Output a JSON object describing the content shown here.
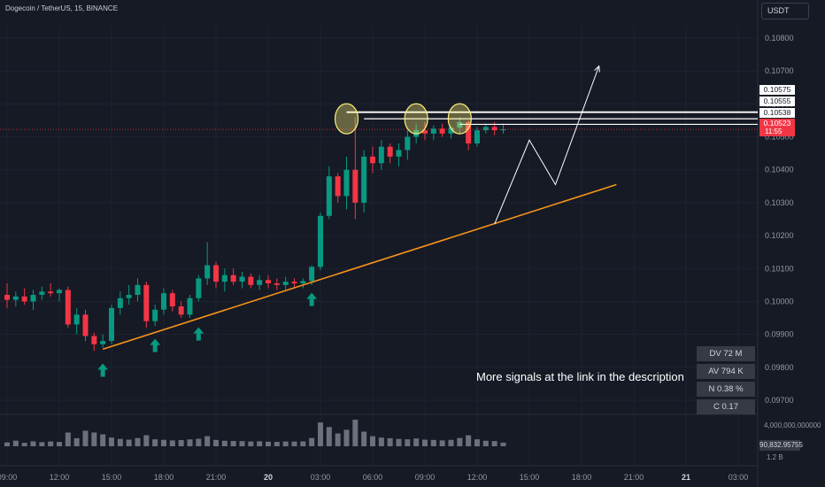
{
  "header": {
    "symbol_title": "Dogecoin / TetherUS, 15, BINANCE",
    "currency": "USDT"
  },
  "price_tags": {
    "level_1": "0.10575",
    "level_2": "0.10555",
    "level_3": "0.10538",
    "current": "0.10523",
    "countdown": "11:55"
  },
  "stats": {
    "dv": "DV 72 M",
    "av": "AV 794 K",
    "n": "N 0.38 %",
    "c": "C  0.17"
  },
  "caption": "More signals at the link in the description",
  "volume_pane": {
    "max_label": "4,000,000,000000",
    "current_label": "90,832.95755",
    "mid_label": "1.2 B"
  },
  "colors": {
    "background": "#161a25",
    "up": "#089981",
    "down": "#f23645",
    "trendline": "#f7931a",
    "highlight": "#fff176",
    "projection": "#ffffff",
    "volume": "#8a8e99"
  },
  "chart_data": {
    "type": "candlestick",
    "series": [
      {
        "name": "DOGEUSDT",
        "candles": [
          {
            "t": "2024-01-19T09:00",
            "o": 0.1002,
            "h": 0.10055,
            "l": 0.0998,
            "c": 0.10005
          },
          {
            "t": "2024-01-19T09:30",
            "o": 0.10005,
            "h": 0.1003,
            "l": 0.09985,
            "c": 0.10015
          },
          {
            "t": "2024-01-19T10:00",
            "o": 0.10015,
            "h": 0.1004,
            "l": 0.0999,
            "c": 0.1
          },
          {
            "t": "2024-01-19T10:30",
            "o": 0.1,
            "h": 0.10035,
            "l": 0.09975,
            "c": 0.1002
          },
          {
            "t": "2024-01-19T11:00",
            "o": 0.1002,
            "h": 0.10045,
            "l": 0.10005,
            "c": 0.1003
          },
          {
            "t": "2024-01-19T11:30",
            "o": 0.1003,
            "h": 0.10055,
            "l": 0.10015,
            "c": 0.10025
          },
          {
            "t": "2024-01-19T12:00",
            "o": 0.10025,
            "h": 0.1004,
            "l": 0.1,
            "c": 0.10035
          },
          {
            "t": "2024-01-19T12:30",
            "o": 0.10035,
            "h": 0.10045,
            "l": 0.0992,
            "c": 0.0993
          },
          {
            "t": "2024-01-19T13:00",
            "o": 0.0993,
            "h": 0.0998,
            "l": 0.099,
            "c": 0.0996
          },
          {
            "t": "2024-01-19T13:30",
            "o": 0.0996,
            "h": 0.09975,
            "l": 0.0988,
            "c": 0.09895
          },
          {
            "t": "2024-01-19T14:00",
            "o": 0.09895,
            "h": 0.09905,
            "l": 0.0985,
            "c": 0.0987
          },
          {
            "t": "2024-01-19T14:30",
            "o": 0.0987,
            "h": 0.099,
            "l": 0.0986,
            "c": 0.0988
          },
          {
            "t": "2024-01-19T15:00",
            "o": 0.0988,
            "h": 0.0999,
            "l": 0.0987,
            "c": 0.0998
          },
          {
            "t": "2024-01-19T15:30",
            "o": 0.0998,
            "h": 0.1003,
            "l": 0.0996,
            "c": 0.1001
          },
          {
            "t": "2024-01-19T16:00",
            "o": 0.1001,
            "h": 0.1005,
            "l": 0.0999,
            "c": 0.1002
          },
          {
            "t": "2024-01-19T16:30",
            "o": 0.1002,
            "h": 0.1007,
            "l": 0.1,
            "c": 0.1005
          },
          {
            "t": "2024-01-19T17:00",
            "o": 0.1005,
            "h": 0.1006,
            "l": 0.0992,
            "c": 0.0994
          },
          {
            "t": "2024-01-19T17:30",
            "o": 0.0994,
            "h": 0.0999,
            "l": 0.09925,
            "c": 0.09975
          },
          {
            "t": "2024-01-19T18:00",
            "o": 0.09975,
            "h": 0.1004,
            "l": 0.0996,
            "c": 0.10025
          },
          {
            "t": "2024-01-19T18:30",
            "o": 0.10025,
            "h": 0.10035,
            "l": 0.0997,
            "c": 0.09985
          },
          {
            "t": "2024-01-19T19:00",
            "o": 0.09985,
            "h": 0.1,
            "l": 0.0995,
            "c": 0.0996
          },
          {
            "t": "2024-01-19T19:30",
            "o": 0.0996,
            "h": 0.1002,
            "l": 0.0995,
            "c": 0.1001
          },
          {
            "t": "2024-01-19T20:00",
            "o": 0.1001,
            "h": 0.1008,
            "l": 0.1,
            "c": 0.1007
          },
          {
            "t": "2024-01-19T20:30",
            "o": 0.1007,
            "h": 0.1018,
            "l": 0.1005,
            "c": 0.1011
          },
          {
            "t": "2024-01-19T21:00",
            "o": 0.1011,
            "h": 0.1012,
            "l": 0.1004,
            "c": 0.1006
          },
          {
            "t": "2024-01-19T21:30",
            "o": 0.1006,
            "h": 0.101,
            "l": 0.1003,
            "c": 0.1008
          },
          {
            "t": "2024-01-19T22:00",
            "o": 0.1008,
            "h": 0.101,
            "l": 0.1005,
            "c": 0.1006
          },
          {
            "t": "2024-01-19T22:30",
            "o": 0.1006,
            "h": 0.1009,
            "l": 0.1004,
            "c": 0.10075
          },
          {
            "t": "2024-01-19T23:00",
            "o": 0.10075,
            "h": 0.10085,
            "l": 0.1004,
            "c": 0.1005
          },
          {
            "t": "2024-01-19T23:30",
            "o": 0.1005,
            "h": 0.1008,
            "l": 0.10035,
            "c": 0.10065
          },
          {
            "t": "2024-01-20T00:00",
            "o": 0.10065,
            "h": 0.1008,
            "l": 0.1004,
            "c": 0.10055
          },
          {
            "t": "2024-01-20T00:30",
            "o": 0.10055,
            "h": 0.1007,
            "l": 0.10035,
            "c": 0.1005
          },
          {
            "t": "2024-01-20T01:00",
            "o": 0.1005,
            "h": 0.10075,
            "l": 0.1003,
            "c": 0.1006
          },
          {
            "t": "2024-01-20T01:30",
            "o": 0.1006,
            "h": 0.1007,
            "l": 0.1004,
            "c": 0.10055
          },
          {
            "t": "2024-01-20T02:00",
            "o": 0.10055,
            "h": 0.1007,
            "l": 0.1004,
            "c": 0.10062
          },
          {
            "t": "2024-01-20T02:30",
            "o": 0.10062,
            "h": 0.1011,
            "l": 0.1005,
            "c": 0.10105
          },
          {
            "t": "2024-01-20T03:00",
            "o": 0.10105,
            "h": 0.1027,
            "l": 0.10095,
            "c": 0.1026
          },
          {
            "t": "2024-01-20T03:30",
            "o": 0.1026,
            "h": 0.1041,
            "l": 0.1025,
            "c": 0.1038
          },
          {
            "t": "2024-01-20T04:00",
            "o": 0.1038,
            "h": 0.1039,
            "l": 0.103,
            "c": 0.1032
          },
          {
            "t": "2024-01-20T04:30",
            "o": 0.1032,
            "h": 0.1044,
            "l": 0.1028,
            "c": 0.104
          },
          {
            "t": "2024-01-20T05:00",
            "o": 0.104,
            "h": 0.1056,
            "l": 0.1025,
            "c": 0.103
          },
          {
            "t": "2024-01-20T05:30",
            "o": 0.103,
            "h": 0.1046,
            "l": 0.1027,
            "c": 0.1044
          },
          {
            "t": "2024-01-20T06:00",
            "o": 0.1044,
            "h": 0.1047,
            "l": 0.1039,
            "c": 0.1042
          },
          {
            "t": "2024-01-20T06:30",
            "o": 0.1042,
            "h": 0.1049,
            "l": 0.104,
            "c": 0.1047
          },
          {
            "t": "2024-01-20T07:00",
            "o": 0.1047,
            "h": 0.1048,
            "l": 0.1042,
            "c": 0.1044
          },
          {
            "t": "2024-01-20T07:30",
            "o": 0.1044,
            "h": 0.1048,
            "l": 0.1041,
            "c": 0.1046
          },
          {
            "t": "2024-01-20T08:00",
            "o": 0.1046,
            "h": 0.1052,
            "l": 0.1043,
            "c": 0.105
          },
          {
            "t": "2024-01-20T08:30",
            "o": 0.105,
            "h": 0.1054,
            "l": 0.1048,
            "c": 0.1052
          },
          {
            "t": "2024-01-20T09:00",
            "o": 0.1052,
            "h": 0.10545,
            "l": 0.1049,
            "c": 0.1051
          },
          {
            "t": "2024-01-20T09:30",
            "o": 0.1051,
            "h": 0.10535,
            "l": 0.1049,
            "c": 0.10525
          },
          {
            "t": "2024-01-20T10:00",
            "o": 0.10525,
            "h": 0.1054,
            "l": 0.105,
            "c": 0.1051
          },
          {
            "t": "2024-01-20T10:30",
            "o": 0.1051,
            "h": 0.10535,
            "l": 0.10495,
            "c": 0.10528
          },
          {
            "t": "2024-01-20T11:00",
            "o": 0.10528,
            "h": 0.1056,
            "l": 0.1051,
            "c": 0.10545
          },
          {
            "t": "2024-01-20T11:30",
            "o": 0.10545,
            "h": 0.1055,
            "l": 0.1046,
            "c": 0.1048
          },
          {
            "t": "2024-01-20T12:00",
            "o": 0.1048,
            "h": 0.1053,
            "l": 0.1047,
            "c": 0.1052
          },
          {
            "t": "2024-01-20T12:30",
            "o": 0.1052,
            "h": 0.1054,
            "l": 0.1051,
            "c": 0.1053
          },
          {
            "t": "2024-01-20T13:00",
            "o": 0.1053,
            "h": 0.10545,
            "l": 0.10505,
            "c": 0.1052
          },
          {
            "t": "2024-01-20T13:30",
            "o": 0.1052,
            "h": 0.1054,
            "l": 0.1051,
            "c": 0.10523
          }
        ]
      }
    ],
    "volume": [
      420,
      610,
      380,
      540,
      450,
      520,
      470,
      1500,
      880,
      1700,
      1500,
      1300,
      950,
      800,
      720,
      900,
      1200,
      760,
      700,
      640,
      680,
      750,
      820,
      1100,
      690,
      600,
      580,
      560,
      520,
      540,
      500,
      480,
      520,
      510,
      530,
      900,
      2600,
      2100,
      1400,
      1800,
      2900,
      1600,
      1100,
      950,
      880,
      800,
      760,
      850,
      720,
      690,
      640,
      700,
      900,
      1200,
      760,
      600,
      560,
      400
    ],
    "y_axis": {
      "ticks": [
        0.097,
        0.098,
        0.099,
        0.1,
        0.101,
        0.102,
        0.103,
        0.104,
        0.105,
        0.106,
        0.107,
        0.108
      ],
      "ylim": [
        0.09665,
        0.10835
      ]
    },
    "x_axis": {
      "ticks": [
        "09:00",
        "12:00",
        "15:00",
        "18:00",
        "21:00",
        "20",
        "03:00",
        "06:00",
        "09:00",
        "12:00",
        "15:00",
        "18:00",
        "21:00",
        "21",
        "03:00"
      ]
    },
    "resistance_levels": [
      0.10575,
      0.10555,
      0.10538
    ],
    "support_trendline": {
      "from": {
        "t": "2024-01-19T14:30",
        "v": 0.09855
      },
      "to": {
        "t": "2024-01-20T20:00",
        "v": 0.10355
      }
    },
    "annotations": [
      "up-arrow",
      "up-arrow",
      "up-arrow",
      "up-arrow",
      "up-arrow",
      "highlight-circle",
      "highlight-circle",
      "highlight-circle",
      "projection-path"
    ]
  }
}
